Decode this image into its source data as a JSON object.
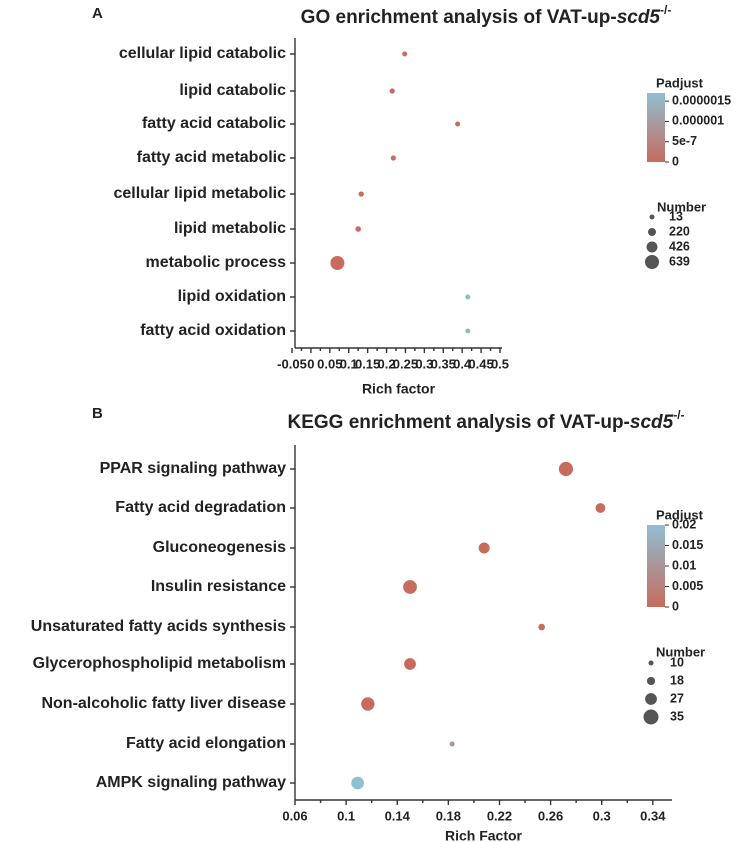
{
  "chart_data": [
    {
      "panel": "A",
      "type": "scatter",
      "title": "GO enrichment analysis of VAT-up-",
      "title_italic": "scd5",
      "title_sup": "-/-",
      "xlabel": "Rich factor",
      "ylabel": "",
      "xlim": [
        -0.05,
        0.5
      ],
      "xticks": [
        -0.05,
        0,
        0.05,
        0.1,
        0.15,
        0.2,
        0.25,
        0.3,
        0.35,
        0.4,
        0.45,
        0.5
      ],
      "xtick_labels": [
        "-0.05",
        "0",
        "0.05",
        "0.1",
        "0.15",
        "0.2",
        "0.25",
        "0.3",
        "0.35",
        "0.4",
        "0.45",
        "0.5"
      ],
      "categories": [
        "cellular lipid catabolic",
        "lipid catabolic",
        "fatty acid catabolic",
        "fatty acid metabolic",
        "cellular lipid metabolic",
        "lipid metabolic",
        "metabolic process",
        "lipid oxidation",
        "fatty acid oxidation"
      ],
      "rich_factor": [
        0.248,
        0.215,
        0.388,
        0.218,
        0.133,
        0.125,
        0.07,
        0.415,
        0.415
      ],
      "number": [
        16,
        24,
        13,
        24,
        36,
        52,
        639,
        13,
        13
      ],
      "padjust": [
        0,
        0,
        0,
        0,
        0,
        0,
        0,
        1.6e-06,
        1.6e-06
      ],
      "color_legend": {
        "title": "Padjust",
        "max": 1.7e-06,
        "ticks": [
          1.5e-06,
          1e-06,
          5e-07,
          0
        ],
        "tick_labels": [
          "0.0000015",
          "0.000001",
          "5e-7",
          "0"
        ],
        "low_color": "#c76b5e",
        "high_color": "#8fbfd1"
      },
      "size_legend": {
        "title": "Number",
        "values": [
          13,
          220,
          426,
          639
        ],
        "labels": [
          "13",
          "220",
          "426",
          "639"
        ],
        "radius_range": [
          2.5,
          7
        ]
      }
    },
    {
      "panel": "B",
      "type": "scatter",
      "title": "KEGG enrichment analysis of VAT-up-",
      "title_italic": "scd5",
      "title_sup": "-/-",
      "xlabel": "Rich Factor",
      "ylabel": "",
      "xlim": [
        0.06,
        0.355
      ],
      "xticks": [
        0.06,
        0.1,
        0.14,
        0.18,
        0.22,
        0.26,
        0.3,
        0.34
      ],
      "xtick_labels": [
        "0.06",
        "0.1",
        "0.14",
        "0.18",
        "0.22",
        "0.26",
        "0.3",
        "0.34"
      ],
      "categories": [
        "PPAR signaling pathway",
        "Fatty acid degradation",
        "Gluconeogenesis",
        "Insulin resistance",
        "Unsaturated fatty acids synthesis",
        "Glycerophospholipid metabolism",
        "Non-alcoholic fatty liver disease",
        "Fatty acid elongation",
        "AMPK signaling pathway"
      ],
      "rich_factor": [
        0.272,
        0.299,
        0.208,
        0.15,
        0.253,
        0.15,
        0.117,
        0.183,
        0.109
      ],
      "number": [
        33,
        22,
        25,
        32,
        14,
        27,
        31,
        10,
        29
      ],
      "padjust": [
        0,
        0,
        0,
        0,
        0,
        0,
        0,
        0.009,
        0.02
      ],
      "color_legend": {
        "title": "Padjust",
        "max": 0.02,
        "ticks": [
          0.02,
          0.015,
          0.01,
          0.005,
          0
        ],
        "tick_labels": [
          "0.02",
          "0.015",
          "0.01",
          "0.005",
          "0"
        ],
        "low_color": "#c76b5e",
        "high_color": "#8fbfd1"
      },
      "size_legend": {
        "title": "Number",
        "values": [
          10,
          18,
          27,
          35
        ],
        "labels": [
          "10",
          "18",
          "27",
          "35"
        ],
        "radius_range": [
          2.5,
          7.5
        ]
      }
    }
  ]
}
